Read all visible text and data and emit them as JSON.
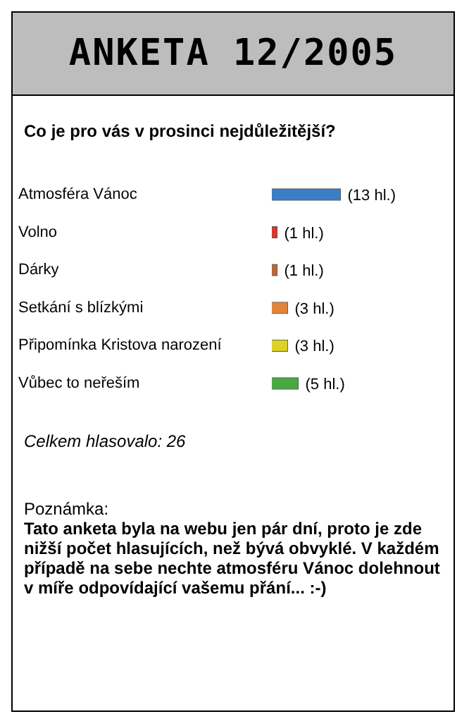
{
  "chart_data": {
    "type": "bar",
    "orientation": "horizontal",
    "title": "ANKETA 12/2005",
    "subtitle": "Co je pro vás v prosinci nejdůležitější?",
    "categories": [
      "Atmosféra Vánoc",
      "Volno",
      "Dárky",
      "Setkání s blízkými",
      "Připomínka Kristova narození",
      "Vůbec to neřeším"
    ],
    "values": [
      13,
      1,
      1,
      3,
      3,
      5
    ],
    "colors": [
      "#3a7ec6",
      "#d43a2e",
      "#b36a36",
      "#e0843a",
      "#dcd22a",
      "#4aa844"
    ],
    "value_labels": [
      "(13 hl.)",
      "(1 hl.)",
      "(1 hl.)",
      "(3 hl.)",
      "(3 hl.)",
      "(5 hl.)"
    ],
    "legend": false,
    "annotations": [
      "Celkem hlasovalo: 26",
      "Poznámka:",
      "Tato anketa byla na webu jen pár dní, proto je zde nižší počet hlasujících, než bývá obvyklé. V každém případě na sebe nechte atmosféru Vánoc dolehnout v míře odpovídající vašemu přání... :-)"
    ]
  }
}
